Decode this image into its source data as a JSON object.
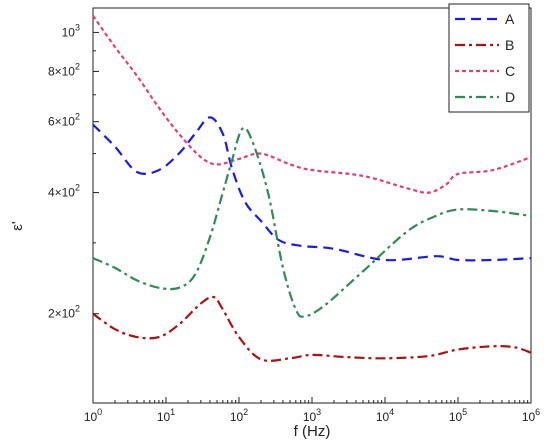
{
  "chart_data": {
    "type": "line",
    "title": "",
    "xlabel": "f (Hz)",
    "ylabel": "ε'",
    "xscale": "log",
    "yscale": "log",
    "xlim": [
      1,
      1000000
    ],
    "ylim": [
      120,
      1150
    ],
    "x_ticks": [
      {
        "value": 1,
        "base": "10",
        "exp": "0"
      },
      {
        "value": 10,
        "base": "10",
        "exp": "1"
      },
      {
        "value": 100,
        "base": "10",
        "exp": "2"
      },
      {
        "value": 1000,
        "base": "10",
        "exp": "3"
      },
      {
        "value": 10000,
        "base": "10",
        "exp": "4"
      },
      {
        "value": 100000,
        "base": "10",
        "exp": "5"
      },
      {
        "value": 1000000,
        "base": "10",
        "exp": "6"
      }
    ],
    "y_ticks": [
      {
        "value": 200,
        "mant": "2×10",
        "exp": "2"
      },
      {
        "value": 400,
        "mant": "4×10",
        "exp": "2"
      },
      {
        "value": 600,
        "mant": "6×10",
        "exp": "2"
      },
      {
        "value": 800,
        "mant": "8×10",
        "exp": "2"
      },
      {
        "value": 1000,
        "mant": "10",
        "exp": "3"
      }
    ],
    "legend_position": "top-right",
    "grid": false,
    "series": [
      {
        "name": "A",
        "color": "#1a1aee",
        "dash": "dash",
        "points": [
          [
            1,
            590
          ],
          [
            2,
            520
          ],
          [
            4,
            450
          ],
          [
            8,
            455
          ],
          [
            15,
            500
          ],
          [
            25,
            560
          ],
          [
            40,
            615
          ],
          [
            60,
            560
          ],
          [
            80,
            460
          ],
          [
            120,
            380
          ],
          [
            200,
            340
          ],
          [
            350,
            305
          ],
          [
            700,
            295
          ],
          [
            2000,
            290
          ],
          [
            10000,
            272
          ],
          [
            50000,
            278
          ],
          [
            100000,
            272
          ],
          [
            300000,
            272
          ],
          [
            1000000,
            275
          ]
        ]
      },
      {
        "name": "B",
        "color": "#aa1111",
        "dash": "dashdot",
        "points": [
          [
            1,
            200
          ],
          [
            2,
            183
          ],
          [
            4,
            175
          ],
          [
            8,
            175
          ],
          [
            15,
            188
          ],
          [
            30,
            212
          ],
          [
            45,
            220
          ],
          [
            60,
            205
          ],
          [
            100,
            175
          ],
          [
            200,
            154
          ],
          [
            500,
            155
          ],
          [
            1000,
            158
          ],
          [
            3000,
            156
          ],
          [
            10000,
            155
          ],
          [
            40000,
            157
          ],
          [
            100000,
            163
          ],
          [
            300000,
            166
          ],
          [
            600000,
            165
          ],
          [
            1000000,
            160
          ]
        ]
      },
      {
        "name": "C",
        "color": "#e0407a",
        "dash": "dot",
        "points": [
          [
            1,
            1100
          ],
          [
            2,
            920
          ],
          [
            4,
            780
          ],
          [
            8,
            650
          ],
          [
            15,
            560
          ],
          [
            30,
            490
          ],
          [
            50,
            470
          ],
          [
            100,
            485
          ],
          [
            200,
            500
          ],
          [
            500,
            470
          ],
          [
            1000,
            455
          ],
          [
            5000,
            440
          ],
          [
            20000,
            410
          ],
          [
            40000,
            400
          ],
          [
            70000,
            420
          ],
          [
            100000,
            445
          ],
          [
            300000,
            455
          ],
          [
            1000000,
            490
          ]
        ]
      },
      {
        "name": "D",
        "color": "#2e8b57",
        "dash": "dashdot",
        "points": [
          [
            1,
            275
          ],
          [
            2,
            260
          ],
          [
            4,
            242
          ],
          [
            8,
            232
          ],
          [
            15,
            232
          ],
          [
            25,
            250
          ],
          [
            40,
            310
          ],
          [
            60,
            400
          ],
          [
            80,
            480
          ],
          [
            110,
            575
          ],
          [
            150,
            540
          ],
          [
            250,
            400
          ],
          [
            400,
            260
          ],
          [
            600,
            205
          ],
          [
            800,
            197
          ],
          [
            1500,
            210
          ],
          [
            5000,
            255
          ],
          [
            20000,
            320
          ],
          [
            50000,
            350
          ],
          [
            100000,
            363
          ],
          [
            300000,
            360
          ],
          [
            1000000,
            350
          ]
        ]
      }
    ]
  }
}
